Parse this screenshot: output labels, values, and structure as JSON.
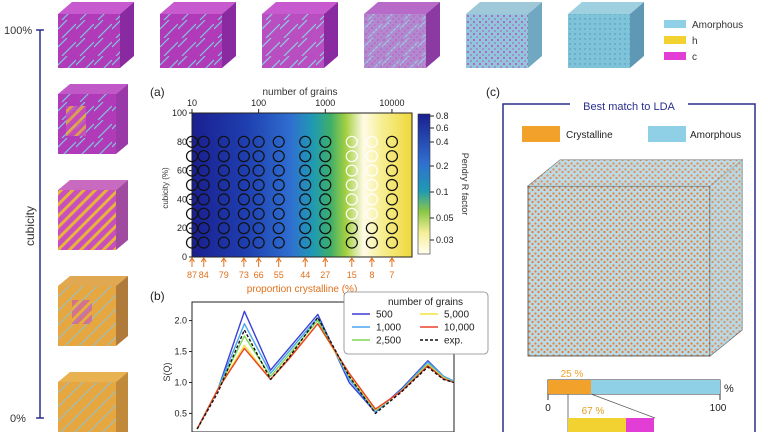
{
  "left_axis": {
    "label": "cubicity",
    "top_tick": "100%",
    "bottom_tick": "0%"
  },
  "legend_top": {
    "items": [
      {
        "label": "Amorphous",
        "color": "#8fd0e6"
      },
      {
        "label": "h",
        "color": "#f2d230"
      },
      {
        "label": "c",
        "color": "#e23ed6"
      }
    ]
  },
  "panel_a": {
    "tag": "(a)",
    "top_axis_label": "number of grains",
    "top_ticks": [
      "10",
      "100",
      "1000",
      "10000"
    ],
    "ylabel": "cubicity (%)",
    "yticks": [
      "0",
      "20",
      "40",
      "60",
      "80",
      "100"
    ],
    "bottom_ticks": [
      "87",
      "84",
      "79",
      "73",
      "66",
      "55",
      "44",
      "27",
      "15",
      "8",
      "7"
    ],
    "bottom_axis_label": "proportion crystalline (%)",
    "colorbar_label": "Pendry R factor",
    "colorbar_ticks": [
      "0.8",
      "0.6",
      "0.4",
      "0.2",
      "0.1",
      "0.05",
      "0.03"
    ]
  },
  "panel_b": {
    "tag": "(b)",
    "ylabel": "S(Q)",
    "yticks": [
      "0.5",
      "1.0",
      "1.5",
      "2.0"
    ],
    "legend_title": "number of grains",
    "legend": [
      {
        "label": "500",
        "color": "#3b3fd6",
        "dash": false
      },
      {
        "label": "5,000",
        "color": "#f2e33a",
        "dash": false
      },
      {
        "label": "1,000",
        "color": "#4aa6f0",
        "dash": false
      },
      {
        "label": "10,000",
        "color": "#e8402a",
        "dash": false
      },
      {
        "label": "2,500",
        "color": "#7ed957",
        "dash": false
      },
      {
        "label": "exp.",
        "color": "#111111",
        "dash": true
      }
    ]
  },
  "panel_c": {
    "tag": "(c)",
    "title": "Best match to LDA",
    "legend": [
      {
        "label": "Crystalline",
        "color": "#f2a22a"
      },
      {
        "label": "Amorphous",
        "color": "#8fd0e6"
      }
    ],
    "bar_value_label": "25 %",
    "bar_pct_symbol": "%",
    "bar_ticks": [
      "0",
      "100"
    ],
    "sub_bar_label": "67 %"
  },
  "chart_data": [
    {
      "type": "heatmap",
      "title": "",
      "xlabel": "number of grains",
      "ylabel": "cubicity (%)",
      "x_scale": "log",
      "xlim": [
        10,
        20000
      ],
      "ylim": [
        0,
        100
      ],
      "colorbar": "Pendry R factor",
      "colorbar_scale": "log",
      "colorbar_range": [
        0.025,
        0.9
      ],
      "sample_points_x_grains": [
        10,
        15,
        30,
        60,
        100,
        200,
        500,
        1000,
        2500,
        5000,
        10000
      ],
      "sample_points_y_cubicity": [
        10,
        20,
        30,
        40,
        50,
        60,
        70,
        80
      ],
      "best_region_grains": [
        2500,
        5000
      ],
      "proportion_crystalline_ticks": [
        87,
        84,
        79,
        73,
        66,
        55,
        44,
        27,
        15,
        8,
        7
      ]
    },
    {
      "type": "line",
      "title": "",
      "ylabel": "S(Q)",
      "ylim": [
        0.2,
        2.3
      ],
      "series": [
        {
          "name": "500",
          "values": [
            0.25,
            0.9,
            2.15,
            1.2,
            1.55,
            2.1,
            1.0,
            0.52,
            0.9,
            1.35,
            1.1,
            1.02
          ]
        },
        {
          "name": "1,000",
          "values": [
            0.25,
            0.9,
            1.95,
            1.15,
            1.5,
            2.05,
            1.05,
            0.53,
            0.88,
            1.33,
            1.1,
            1.02
          ]
        },
        {
          "name": "2,500",
          "values": [
            0.25,
            0.9,
            1.75,
            1.1,
            1.45,
            2.0,
            1.1,
            0.55,
            0.87,
            1.3,
            1.08,
            1.0
          ]
        },
        {
          "name": "5,000",
          "values": [
            0.25,
            0.9,
            1.6,
            1.05,
            1.4,
            1.95,
            1.12,
            0.56,
            0.86,
            1.28,
            1.07,
            1.0
          ]
        },
        {
          "name": "10,000",
          "values": [
            0.25,
            0.9,
            1.55,
            1.05,
            1.38,
            1.95,
            1.15,
            0.57,
            0.86,
            1.27,
            1.06,
            1.0
          ]
        },
        {
          "name": "exp.",
          "values": [
            0.25,
            0.85,
            1.85,
            1.05,
            1.4,
            2.05,
            1.1,
            0.5,
            0.85,
            1.25,
            1.05,
            1.0
          ]
        }
      ]
    }
  ]
}
